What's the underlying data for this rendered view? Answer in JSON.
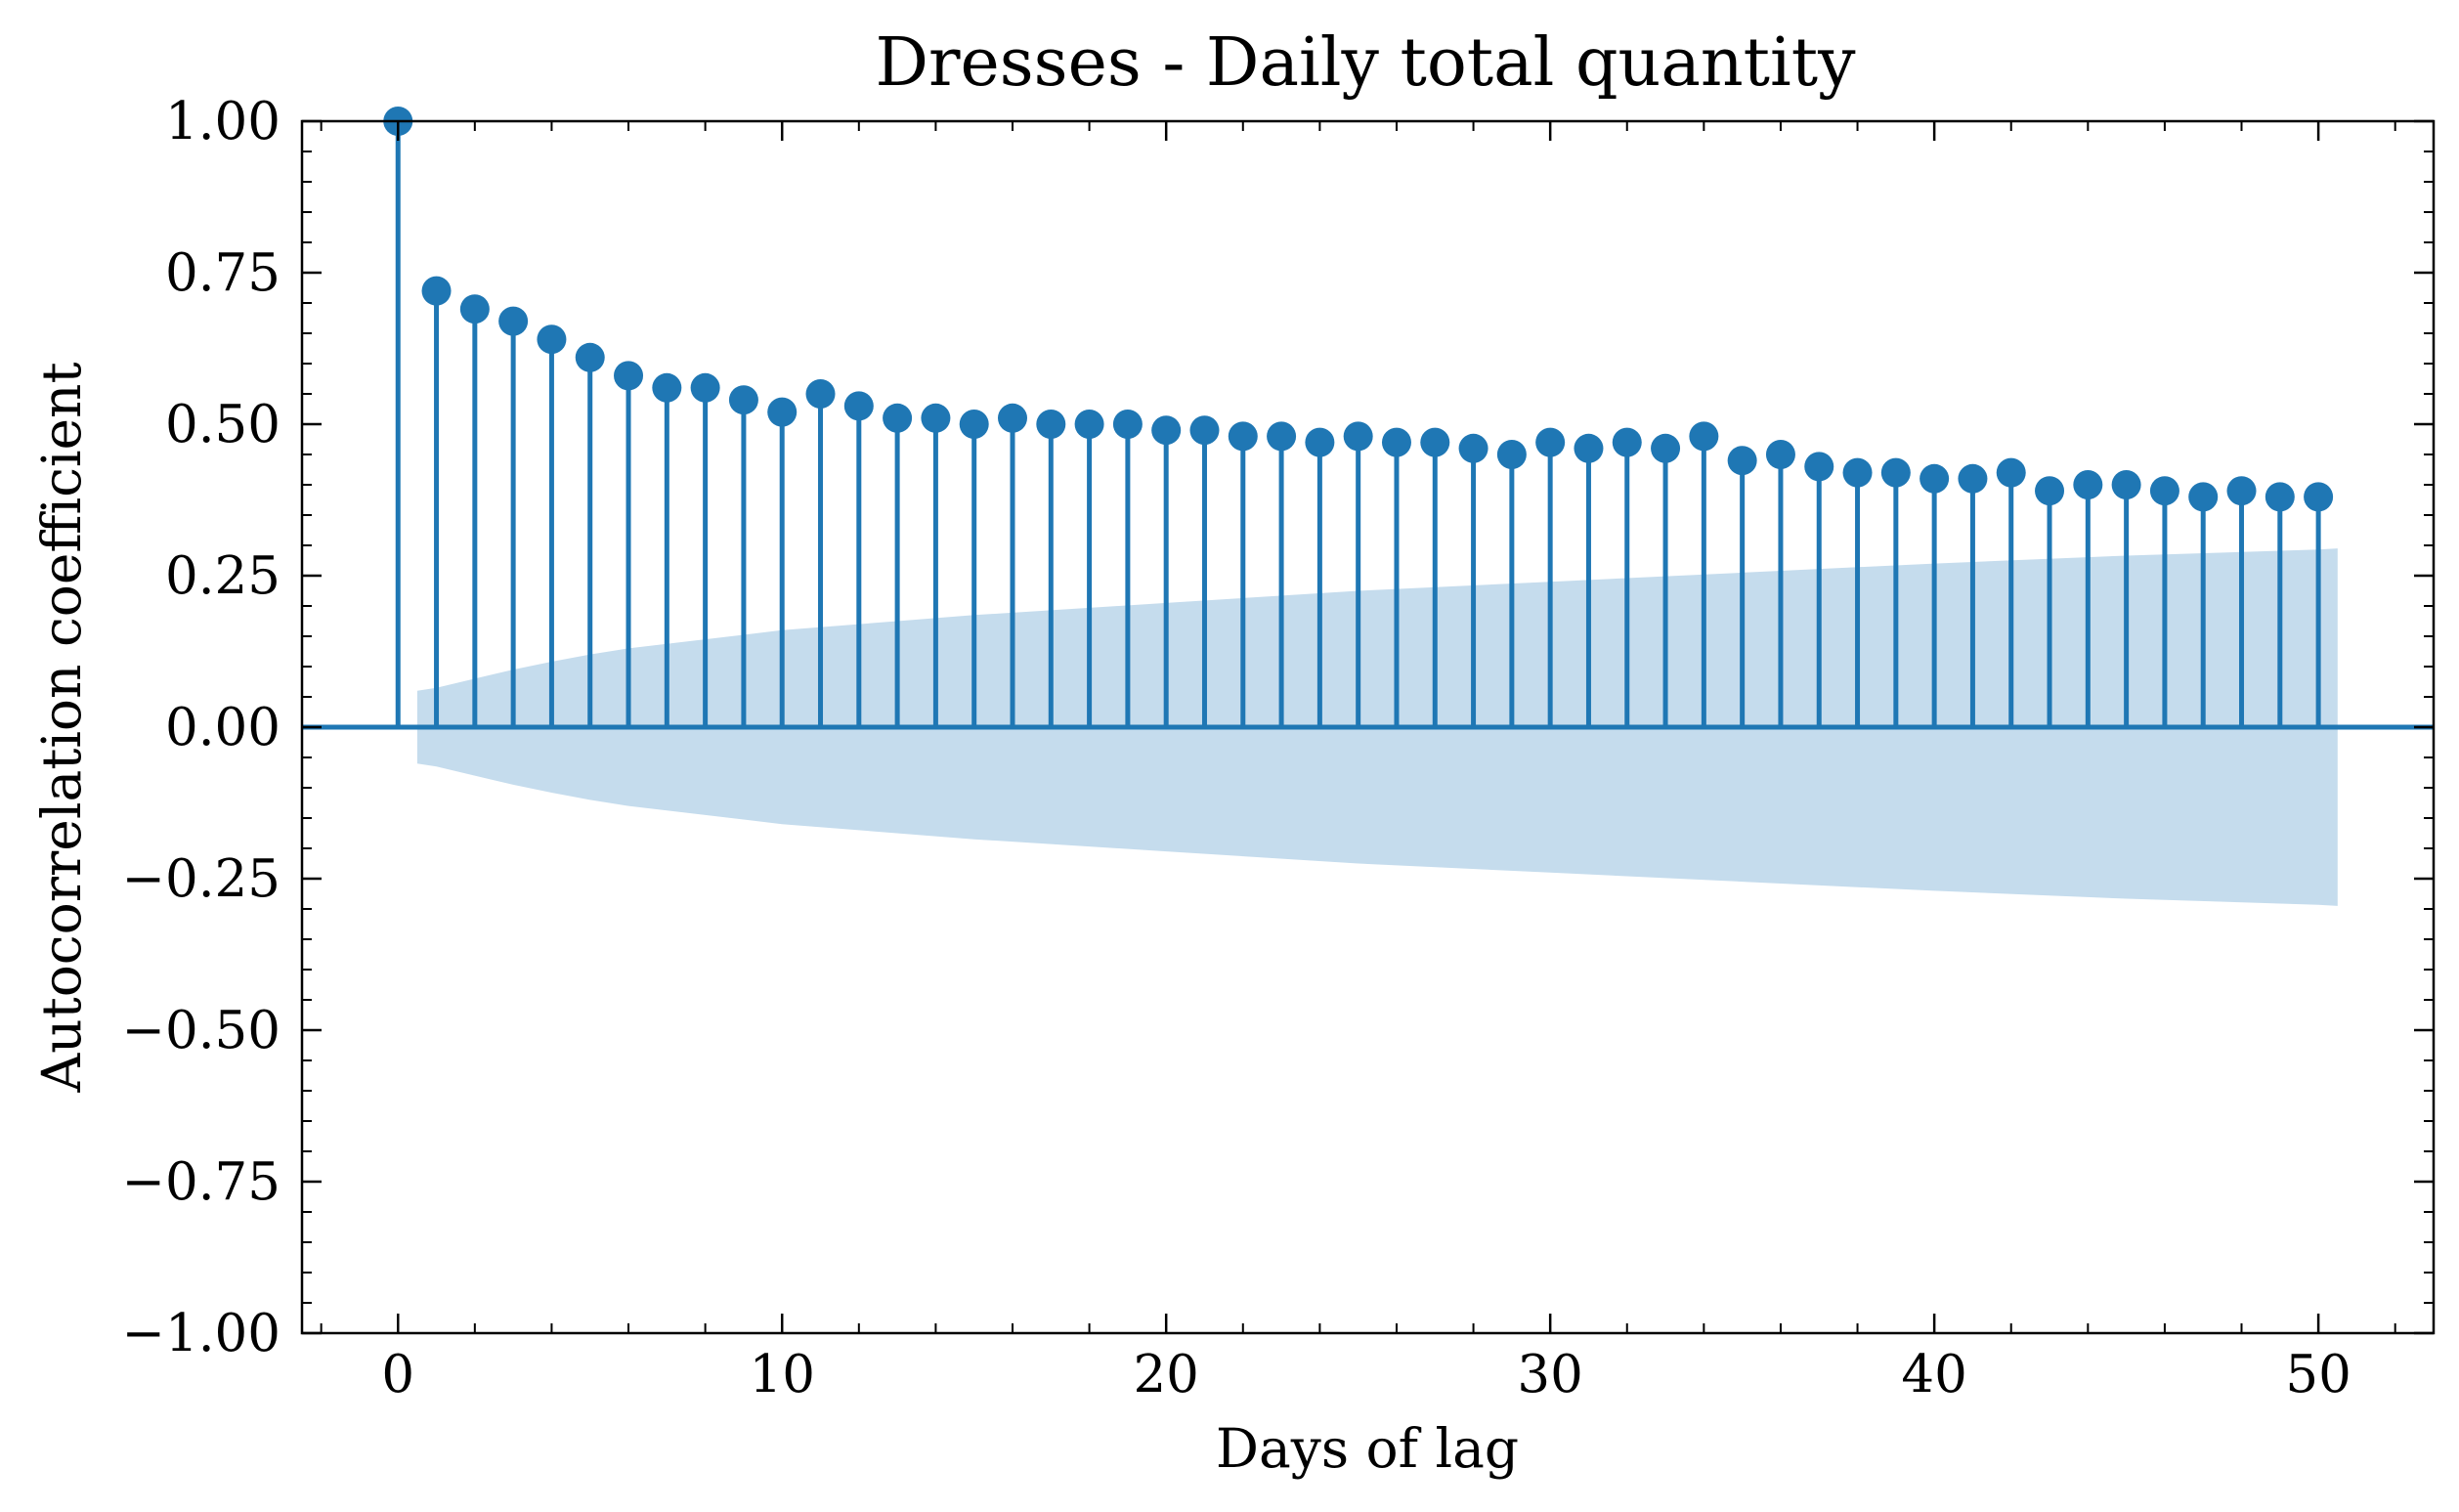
{
  "chart_data": {
    "type": "stem",
    "title": "Dresses - Daily total quantity",
    "xlabel": "Days of lag",
    "ylabel": "Autocorrelation coefficient",
    "xlim": [
      -2.5,
      53
    ],
    "ylim": [
      -1.0,
      1.0
    ],
    "xticks": [
      0,
      10,
      20,
      30,
      40,
      50
    ],
    "xtick_labels": [
      "0",
      "10",
      "20",
      "30",
      "40",
      "50"
    ],
    "yticks": [
      1.0,
      0.75,
      0.5,
      0.25,
      0.0,
      -0.25,
      -0.5,
      -0.75,
      -1.0
    ],
    "ytick_labels": [
      "1.00",
      "0.75",
      "0.50",
      "0.25",
      "0.00",
      "−0.25",
      "−0.50",
      "−0.75",
      "−1.00"
    ],
    "grid": false,
    "color": "#1f77b4",
    "band_color": "#c5dced",
    "x": [
      0,
      1,
      2,
      3,
      4,
      5,
      6,
      7,
      8,
      9,
      10,
      11,
      12,
      13,
      14,
      15,
      16,
      17,
      18,
      19,
      20,
      21,
      22,
      23,
      24,
      25,
      26,
      27,
      28,
      29,
      30,
      31,
      32,
      33,
      34,
      35,
      36,
      37,
      38,
      39,
      40,
      41,
      42,
      43,
      44,
      45,
      46,
      47,
      48,
      49,
      50
    ],
    "values": [
      1.0,
      0.72,
      0.69,
      0.67,
      0.64,
      0.61,
      0.58,
      0.56,
      0.56,
      0.54,
      0.52,
      0.55,
      0.53,
      0.51,
      0.51,
      0.5,
      0.51,
      0.5,
      0.5,
      0.5,
      0.49,
      0.49,
      0.48,
      0.48,
      0.47,
      0.48,
      0.47,
      0.47,
      0.46,
      0.45,
      0.47,
      0.46,
      0.47,
      0.46,
      0.48,
      0.44,
      0.45,
      0.43,
      0.42,
      0.42,
      0.41,
      0.41,
      0.42,
      0.39,
      0.4,
      0.4,
      0.39,
      0.38,
      0.39,
      0.38,
      0.38
    ],
    "confidence_band": {
      "x": [
        0.5,
        1,
        2,
        3,
        4,
        5,
        6,
        8,
        10,
        15,
        20,
        25,
        30,
        35,
        40,
        45,
        50,
        50.5
      ],
      "upper": [
        0.06,
        0.065,
        0.08,
        0.095,
        0.108,
        0.12,
        0.13,
        0.145,
        0.16,
        0.185,
        0.205,
        0.225,
        0.24,
        0.255,
        0.27,
        0.283,
        0.293,
        0.295
      ]
    }
  }
}
